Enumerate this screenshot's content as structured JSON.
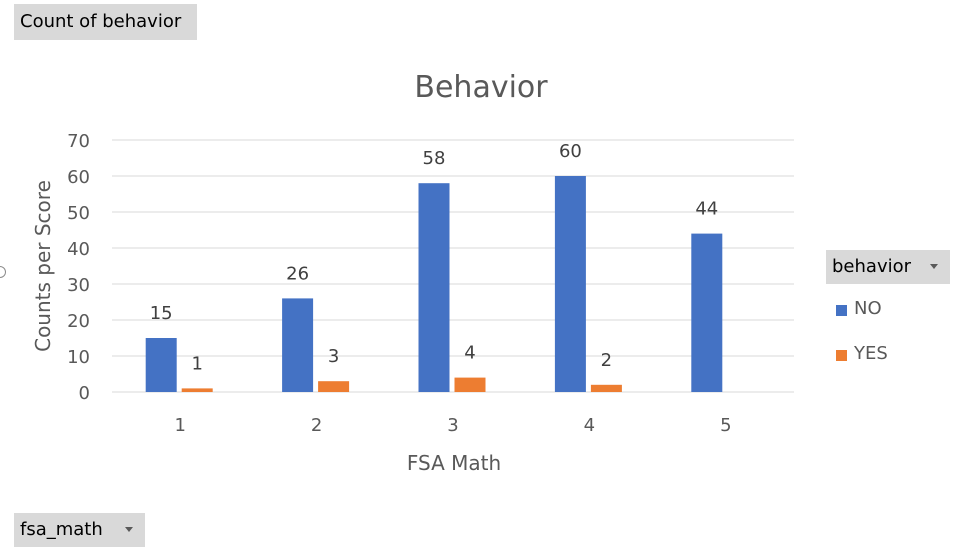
{
  "pivot": {
    "values_field": "Count of behavior",
    "legend_field": "behavior",
    "axis_field": "fsa_math"
  },
  "chart_data": {
    "type": "bar",
    "title": "Behavior",
    "xlabel": "FSA Math",
    "ylabel": "Counts per Score",
    "categories": [
      "1",
      "2",
      "3",
      "4",
      "5"
    ],
    "ylim": [
      0,
      70
    ],
    "yticks": [
      "0",
      "10",
      "20",
      "30",
      "40",
      "50",
      "60",
      "70"
    ],
    "grid": true,
    "legend_position": "right",
    "series": [
      {
        "name": "NO",
        "color": "#4472c4",
        "values": [
          15,
          26,
          58,
          60,
          44
        ]
      },
      {
        "name": "YES",
        "color": "#ed7d31",
        "values": [
          1,
          3,
          4,
          2,
          null
        ]
      }
    ]
  }
}
